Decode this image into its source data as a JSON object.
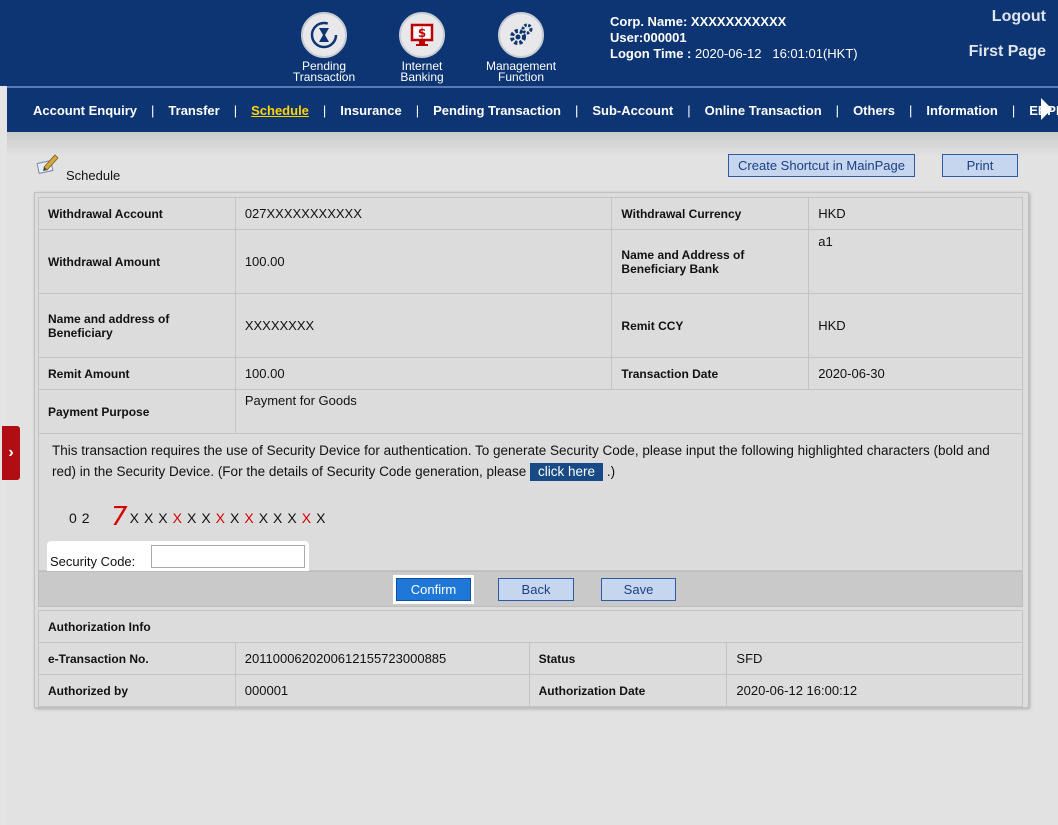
{
  "header": {
    "icons": [
      {
        "label": "Pending\nTransaction",
        "icon": "hourglass-cycle-icon"
      },
      {
        "label": "Internet\nBanking",
        "icon": "monitor-dollar-icon"
      },
      {
        "label": "Management\nFunction",
        "icon": "gears-icon"
      }
    ],
    "corp_label": "Corp. Name:",
    "corp_value": "XXXXXXXXXXX",
    "user": "User:000001",
    "logon_label": "Logon Time :",
    "logon_value": "2020-06-12   16:01:01(HKT)",
    "logout": "Logout",
    "first_page": "First Page"
  },
  "nav": {
    "items": [
      "Account Enquiry",
      "Transfer",
      "Schedule",
      "Insurance",
      "Pending Transaction",
      "Sub-Account",
      "Online Transaction",
      "Others",
      "Information",
      "EBPP Ce"
    ],
    "active": "Schedule"
  },
  "page": {
    "title": "Schedule",
    "shortcut_btn": "Create Shortcut in MainPage",
    "print_btn": "Print"
  },
  "details": {
    "withdrawal_account_label": "Withdrawal Account",
    "withdrawal_account": "027XXXXXXXXXXX",
    "withdrawal_currency_label": "Withdrawal Currency",
    "withdrawal_currency": "HKD",
    "withdrawal_amount_label": "Withdrawal Amount",
    "withdrawal_amount": "100.00",
    "bene_bank_label": "Name and Address of Beneficiary Bank",
    "bene_bank": "a1",
    "beneficiary_label": "Name and address of Beneficiary",
    "beneficiary": "XXXXXXXX",
    "remit_ccy_label": "Remit CCY",
    "remit_ccy": "HKD",
    "remit_amount_label": "Remit Amount",
    "remit_amount": "100.00",
    "txn_date_label": "Transaction Date",
    "txn_date": "2020-06-30",
    "purpose_label": "Payment Purpose",
    "purpose": "Payment for Goods"
  },
  "security": {
    "text_1": "This transaction requires the use of Security Device for authentication. To generate Security Code, please input the following highlighted characters (bold and red) in the Security Device. (For the details of Security Code generation, please",
    "click_here": "click here",
    "text_2": ".)",
    "chars": [
      {
        "c": "0",
        "red": false
      },
      {
        "c": "2",
        "red": false
      },
      {
        "c": "X",
        "red": false
      },
      {
        "c": "X",
        "red": false
      },
      {
        "c": "X",
        "red": false
      },
      {
        "c": "X",
        "red": true
      },
      {
        "c": "X",
        "red": false
      },
      {
        "c": "X",
        "red": false
      },
      {
        "c": "X",
        "red": true
      },
      {
        "c": "X",
        "red": false
      },
      {
        "c": "X",
        "red": true
      },
      {
        "c": "X",
        "red": false
      },
      {
        "c": "X",
        "red": false
      },
      {
        "c": "X",
        "red": false
      },
      {
        "c": "X",
        "red": true
      },
      {
        "c": "X",
        "red": false
      }
    ],
    "handwritten_digit": "7",
    "code_label": "Security Code:",
    "code_value": ""
  },
  "actions": {
    "confirm": "Confirm",
    "back": "Back",
    "save": "Save"
  },
  "auth": {
    "heading": "Authorization Info",
    "etxn_label": "e-Transaction No.",
    "etxn": "201100062020061215572300088​5",
    "status_label": "Status",
    "status": "SFD",
    "authorized_by_label": "Authorized by",
    "authorized_by": "000001",
    "auth_date_label": "Authorization Date",
    "auth_date": "2020-06-12 16:00:12"
  },
  "colors": {
    "header_bg": "#0d3573",
    "active_nav": "#ffd400",
    "side_tab": "#b10e14",
    "highlight_red": "#d40000"
  }
}
